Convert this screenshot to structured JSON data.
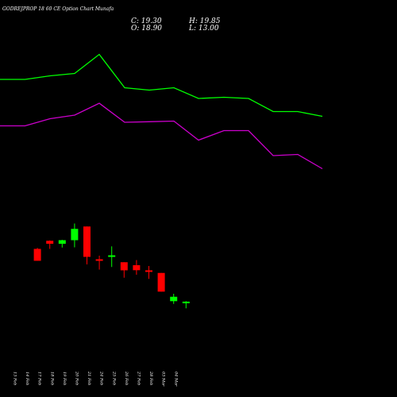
{
  "header": {
    "title": "GODREJPROP 18          60  CE Option Chart Munafa",
    "close_label": "C: 19.30",
    "open_label": "O: 18.90",
    "high_label": "H: 19.85",
    "low_label": "L: 13.00"
  },
  "colors": {
    "background": "#000000",
    "up": "#00ff00",
    "down": "#ff0000",
    "upper_line": "#00ff00",
    "lower_line": "#cc00cc",
    "text": "#ffffff"
  },
  "chart_data": {
    "type": "candlestick",
    "x_tick_labels": [
      "13 Feb",
      "14 Feb",
      "17 Feb",
      "18 Feb",
      "19 Feb",
      "20 Feb",
      "21 Feb",
      "24 Feb",
      "25 Feb",
      "26 Feb",
      "27 Feb",
      "28 Feb",
      "03 Mar",
      "04 Mar"
    ],
    "candles": [
      {
        "date": "14 Feb",
        "open": 97.7,
        "high": 98.5,
        "low": 87.7,
        "close": 87.7
      },
      {
        "date": "17 Feb",
        "open": 104.5,
        "high": 104.8,
        "low": 97.7,
        "close": 102.0
      },
      {
        "date": "18 Feb",
        "open": 102.0,
        "high": 105.3,
        "low": 98.8,
        "close": 105.0
      },
      {
        "date": "19 Feb",
        "open": 105.0,
        "high": 119.0,
        "low": 99.0,
        "close": 114.5
      },
      {
        "date": "20 Feb",
        "open": 116.5,
        "high": 116.5,
        "low": 84.7,
        "close": 91.0
      },
      {
        "date": "21 Feb",
        "open": 89.0,
        "high": 92.0,
        "low": 80.3,
        "close": 88.3
      },
      {
        "date": "24 Feb",
        "open": 91.0,
        "high": 99.8,
        "low": 82.5,
        "close": 92.3
      },
      {
        "date": "25 Feb",
        "open": 86.5,
        "high": 86.5,
        "low": 73.5,
        "close": 79.7
      },
      {
        "date": "26 Feb",
        "open": 84.0,
        "high": 88.3,
        "low": 76.0,
        "close": 79.8
      },
      {
        "date": "27 Feb",
        "open": 79.7,
        "high": 83.3,
        "low": 72.5,
        "close": 78.8
      },
      {
        "date": "28 Feb",
        "open": 77.5,
        "high": 77.5,
        "low": 61.8,
        "close": 61.8
      },
      {
        "date": "03 Mar",
        "open": 53.8,
        "high": 60.0,
        "low": 51.5,
        "close": 57.5
      },
      {
        "date": "04 Mar",
        "open": 53.0,
        "high": 53.8,
        "low": 47.8,
        "close": 53.4
      }
    ],
    "upper_band": [
      {
        "date": "13 Feb",
        "value": 240
      },
      {
        "date": "14 Feb",
        "value": 240
      },
      {
        "date": "17 Feb",
        "value": 243
      },
      {
        "date": "18 Feb",
        "value": 245
      },
      {
        "date": "19 Feb",
        "value": 261
      },
      {
        "date": "20 Feb",
        "value": 233
      },
      {
        "date": "21 Feb",
        "value": 231
      },
      {
        "date": "24 Feb",
        "value": 233
      },
      {
        "date": "25 Feb",
        "value": 224
      },
      {
        "date": "26 Feb",
        "value": 225
      },
      {
        "date": "27 Feb",
        "value": 224
      },
      {
        "date": "28 Feb",
        "value": 213
      },
      {
        "date": "03 Mar",
        "value": 213
      },
      {
        "date": "04 Mar",
        "value": 209
      }
    ],
    "lower_band": [
      {
        "date": "13 Feb",
        "value": 201
      },
      {
        "date": "14 Feb",
        "value": 201
      },
      {
        "date": "17 Feb",
        "value": 207
      },
      {
        "date": "18 Feb",
        "value": 210
      },
      {
        "date": "19 Feb",
        "value": 220
      },
      {
        "date": "20 Feb",
        "value": 204
      },
      {
        "date": "21 Feb",
        "value": 204.5
      },
      {
        "date": "24 Feb",
        "value": 205
      },
      {
        "date": "25 Feb",
        "value": 189
      },
      {
        "date": "26 Feb",
        "value": 197
      },
      {
        "date": "27 Feb",
        "value": 197
      },
      {
        "date": "28 Feb",
        "value": 176
      },
      {
        "date": "03 Mar",
        "value": 177
      },
      {
        "date": "04 Mar",
        "value": 165
      }
    ],
    "ylim": [
      0,
      290
    ],
    "grid": false,
    "legend": "none"
  }
}
